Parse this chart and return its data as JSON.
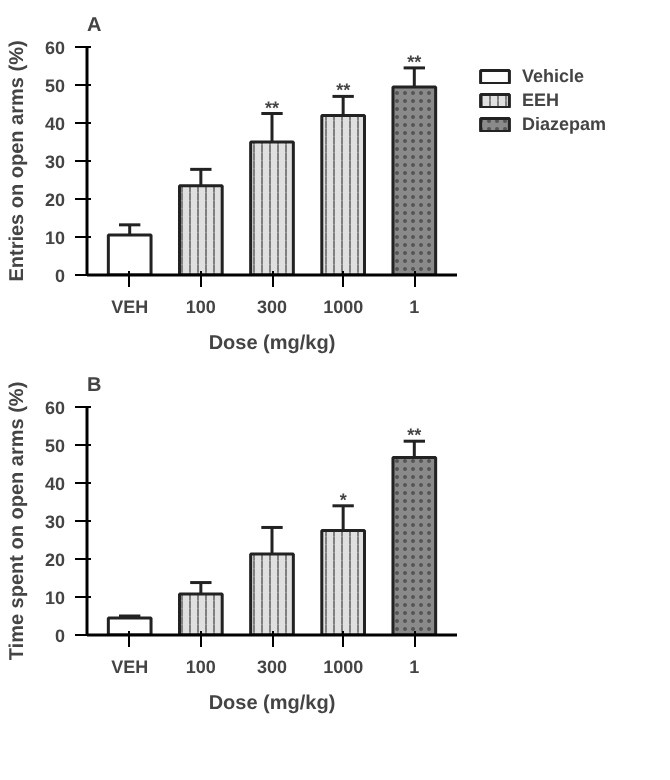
{
  "chart_data": [
    {
      "type": "bar",
      "title": "A",
      "xlabel": "Dose (mg/kg)",
      "ylabel": "Entries on open arms (%)",
      "categories": [
        "VEH",
        "100",
        "300",
        "1000",
        "1"
      ],
      "ylim": [
        0,
        60
      ],
      "yticks": [
        0,
        10,
        20,
        30,
        40,
        50,
        60
      ],
      "grid": false,
      "legend": "top right",
      "series": [
        {
          "name": "Vehicle",
          "color": "#ffffff",
          "values": [
            10.5,
            null,
            null,
            null,
            null
          ],
          "errors": [
            [
              10.5,
              13.2
            ],
            null,
            null,
            null,
            null
          ]
        },
        {
          "name": "EEH",
          "color": "#e0e0e0",
          "values": [
            null,
            23.5,
            35,
            42,
            null
          ],
          "errors": [
            null,
            [
              23.5,
              27.8
            ],
            [
              35,
              42.5
            ],
            [
              42,
              47
            ],
            null
          ]
        },
        {
          "name": "Diazepam",
          "color": "#8a8a8a",
          "values": [
            null,
            null,
            null,
            null,
            49.5
          ],
          "errors": [
            null,
            null,
            null,
            null,
            [
              49.5,
              54.5
            ]
          ]
        }
      ],
      "annotations": [
        {
          "text": "**",
          "x": "300",
          "y": 42.5
        },
        {
          "text": "**",
          "x": "1000",
          "y": 47
        },
        {
          "text": "**",
          "x": "1",
          "y": 54.5
        }
      ]
    },
    {
      "type": "bar",
      "title": "B",
      "xlabel": "Dose (mg/kg)",
      "ylabel": "Time spent on open arms (%)",
      "categories": [
        "VEH",
        "100",
        "300",
        "1000",
        "1"
      ],
      "ylim": [
        0,
        60
      ],
      "yticks": [
        0,
        10,
        20,
        30,
        40,
        50,
        60
      ],
      "grid": false,
      "series": [
        {
          "color": "#ffffff",
          "values": [
            4.5,
            null,
            null,
            null,
            null
          ],
          "errors": [
            [
              4.5,
              5
            ],
            null,
            null,
            null,
            null
          ]
        },
        {
          "color": "#e0e0e0",
          "values": [
            null,
            10.8,
            21.3,
            27.5,
            null
          ],
          "errors": [
            null,
            [
              10.8,
              13.8
            ],
            [
              21.3,
              28.3
            ],
            [
              27.5,
              34
            ],
            null
          ]
        },
        {
          "color": "#8a8a8a",
          "values": [
            null,
            null,
            null,
            null,
            46.7
          ],
          "errors": [
            null,
            null,
            null,
            null,
            [
              46.7,
              51
            ]
          ]
        }
      ],
      "annotations": [
        {
          "text": "*",
          "x": "1000",
          "y": 34
        },
        {
          "text": "**",
          "x": "1",
          "y": 51
        }
      ]
    }
  ]
}
